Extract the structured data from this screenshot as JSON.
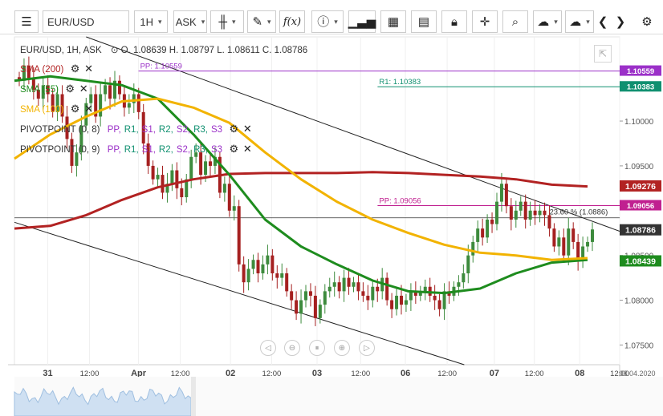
{
  "toolbar": {
    "symbol": "EUR/USD",
    "timeframe": "1H",
    "price_type": "ASK",
    "icons": [
      "menu-icon",
      "candles-icon",
      "draw-icon",
      "fx-icon",
      "info-icon",
      "volume-icon",
      "calendar-icon",
      "report-icon",
      "lock-icon",
      "crosshair-icon",
      "zoom-icon",
      "upload-icon",
      "download-icon",
      "prev-icon",
      "next-icon",
      "settings-icon"
    ]
  },
  "header": {
    "info": "EUR/USD, 1H, ASK",
    "ohlc": "O. 1.08639 H. 1.08797 L. 1.08611 C. 1.08786"
  },
  "indicators": [
    {
      "label": "SMA (200)",
      "color": "#b22222"
    },
    {
      "label": "SMA (55)",
      "color": "#1e8c1e"
    },
    {
      "label": "SMA (100)",
      "color": "#f2b300"
    }
  ],
  "pivots": [
    {
      "name": "PIVOTPOINT (0, 8)"
    },
    {
      "name": "PIVOTPOINT (0, 9)"
    }
  ],
  "pivot_parts": [
    {
      "text": "PP,",
      "color": "#9b30c8"
    },
    {
      "text": "R1,",
      "color": "#109070"
    },
    {
      "text": "S1,",
      "color": "#9b30c8"
    },
    {
      "text": "R2,",
      "color": "#109070"
    },
    {
      "text": "S2,",
      "color": "#9b30c8"
    },
    {
      "text": "R3,",
      "color": "#109070"
    },
    {
      "text": "S3",
      "color": "#9b30c8"
    }
  ],
  "chart_data": {
    "type": "candlestick",
    "symbol": "EUR/USD",
    "timeframe": "1H",
    "y_range": [
      1.0728,
      1.1094
    ],
    "y_ticks": [
      "1.10000",
      "1.09500",
      "1.08500",
      "1.08000",
      "1.07500"
    ],
    "y_tick_values": [
      1.1,
      1.095,
      1.085,
      1.08,
      1.075
    ],
    "x_ticks": [
      {
        "label": "31",
        "x": 0.055,
        "bold": true
      },
      {
        "label": "12:00",
        "x": 0.124
      },
      {
        "label": "Apr",
        "x": 0.205,
        "bold": true
      },
      {
        "label": "12:00",
        "x": 0.274
      },
      {
        "label": "02",
        "x": 0.357,
        "bold": true
      },
      {
        "label": "12:00",
        "x": 0.425
      },
      {
        "label": "03",
        "x": 0.5,
        "bold": true
      },
      {
        "label": "12:00",
        "x": 0.572
      },
      {
        "label": "06",
        "x": 0.646,
        "bold": true
      },
      {
        "label": "12:00",
        "x": 0.715
      },
      {
        "label": "07",
        "x": 0.793,
        "bold": true
      },
      {
        "label": "12:00",
        "x": 0.859
      },
      {
        "label": "08",
        "x": 0.934,
        "bold": true
      },
      {
        "label": "12:00",
        "x": 1.0
      }
    ],
    "axis_end_label": "08.04.2020",
    "candles_close": [
      1.1045,
      1.1062,
      1.1048,
      1.1035,
      1.1025,
      1.104,
      1.103,
      1.101,
      1.103,
      1.1005,
      1.098,
      1.095,
      1.0965,
      1.0995,
      1.102,
      1.103,
      1.1005,
      1.103,
      1.104,
      1.1025,
      1.1045,
      1.103,
      1.1015,
      1.102,
      1.103,
      1.101,
      1.0975,
      1.095,
      1.0935,
      1.094,
      1.092,
      1.093,
      1.0945,
      1.0925,
      1.0915,
      1.0935,
      1.096,
      1.0965,
      1.094,
      1.0955,
      1.095,
      1.096,
      1.092,
      1.093,
      1.09,
      1.0905,
      1.084,
      1.082,
      1.0835,
      1.0845,
      1.083,
      1.084,
      1.085,
      1.083,
      1.0825,
      1.083,
      1.081,
      1.08,
      1.0785,
      1.08,
      1.081,
      1.0805,
      1.078,
      1.0795,
      1.081,
      1.0815,
      1.082,
      1.081,
      1.0825,
      1.0815,
      1.082,
      1.081,
      1.0805,
      1.08,
      1.0815,
      1.081,
      1.0825,
      1.08,
      1.079,
      1.0805,
      1.0795,
      1.08,
      1.081,
      1.0805,
      1.081,
      1.0815,
      1.0805,
      1.08,
      1.079,
      1.081,
      1.0805,
      1.0815,
      1.082,
      1.083,
      1.085,
      1.0865,
      1.088,
      1.087,
      1.089,
      1.0885,
      1.091,
      1.093,
      1.0905,
      1.089,
      1.09,
      1.091,
      1.089,
      1.09,
      1.0895,
      1.09,
      1.0895,
      1.088,
      1.086,
      1.087,
      1.085,
      1.088,
      1.0865,
      1.0845,
      1.086,
      1.0865,
      1.0879
    ],
    "series": [
      {
        "name": "SMA (200)",
        "color": "#b22222",
        "values": [
          1.088,
          1.0883,
          1.0895,
          1.0912,
          1.0926,
          1.0935,
          1.0941,
          1.0942,
          1.0942,
          1.0942,
          1.0943,
          1.0942,
          1.094,
          1.0938,
          1.0935,
          1.0929,
          1.0927
        ]
      },
      {
        "name": "SMA (55)",
        "color": "#1e8c1e",
        "values": [
          1.1045,
          1.105,
          1.1045,
          1.104,
          1.1025,
          1.0985,
          1.094,
          1.089,
          1.086,
          1.084,
          1.0822,
          1.081,
          1.0808,
          1.0813,
          1.083,
          1.0842,
          1.0845
        ]
      },
      {
        "name": "SMA (100)",
        "color": "#f2b300",
        "values": [
          1.0958,
          1.0985,
          1.1005,
          1.1022,
          1.1025,
          1.1015,
          1.0998,
          1.0965,
          1.0935,
          1.091,
          1.089,
          1.0875,
          1.0862,
          1.0853,
          1.085,
          1.0845,
          1.0847
        ]
      }
    ],
    "pivot_lines": [
      {
        "label": "PP: 1.10559",
        "value": 1.10559,
        "color": "#9b30c8",
        "tag": "1.10559",
        "tag_color": "#9b30c8",
        "label_x": 0.205
      },
      {
        "label": "R1: 1.10383",
        "value": 1.10383,
        "color": "#109070",
        "tag": "1.10383",
        "tag_color": "#109070",
        "label_x": 0.6
      },
      {
        "label": "PP: 1.09056",
        "value": 1.09056,
        "color": "#c02090",
        "tag": "1.09056",
        "tag_color": "#c02090",
        "label_x": 0.6
      }
    ],
    "value_tags": [
      {
        "value": 1.09276,
        "text": "1.09276",
        "color": "#b22222"
      },
      {
        "value": 1.08786,
        "text": "1.08786",
        "color": "#333333"
      },
      {
        "value": 1.08439,
        "text": "1.08439",
        "color": "#1e8c1e"
      }
    ],
    "fib_label": "23.60 % (1.0886)",
    "current_price": 1.08786
  },
  "nav": {
    "icons": [
      "scroll-left-icon",
      "zoom-out-icon",
      "reset-icon",
      "zoom-in-icon",
      "scroll-right-icon"
    ]
  }
}
